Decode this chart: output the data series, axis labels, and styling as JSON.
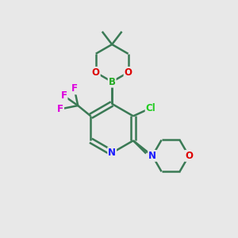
{
  "bg_color": "#e8e8e8",
  "bond_color": "#3a7a55",
  "bond_width": 1.8,
  "atom_colors": {
    "N": "#1a1aff",
    "O": "#dd0000",
    "B": "#22aa22",
    "F": "#dd00dd",
    "Cl": "#22cc22",
    "C": "#3a7a55"
  },
  "font_size": 8.5,
  "fig_size": [
    3.0,
    3.0
  ],
  "dpi": 100
}
